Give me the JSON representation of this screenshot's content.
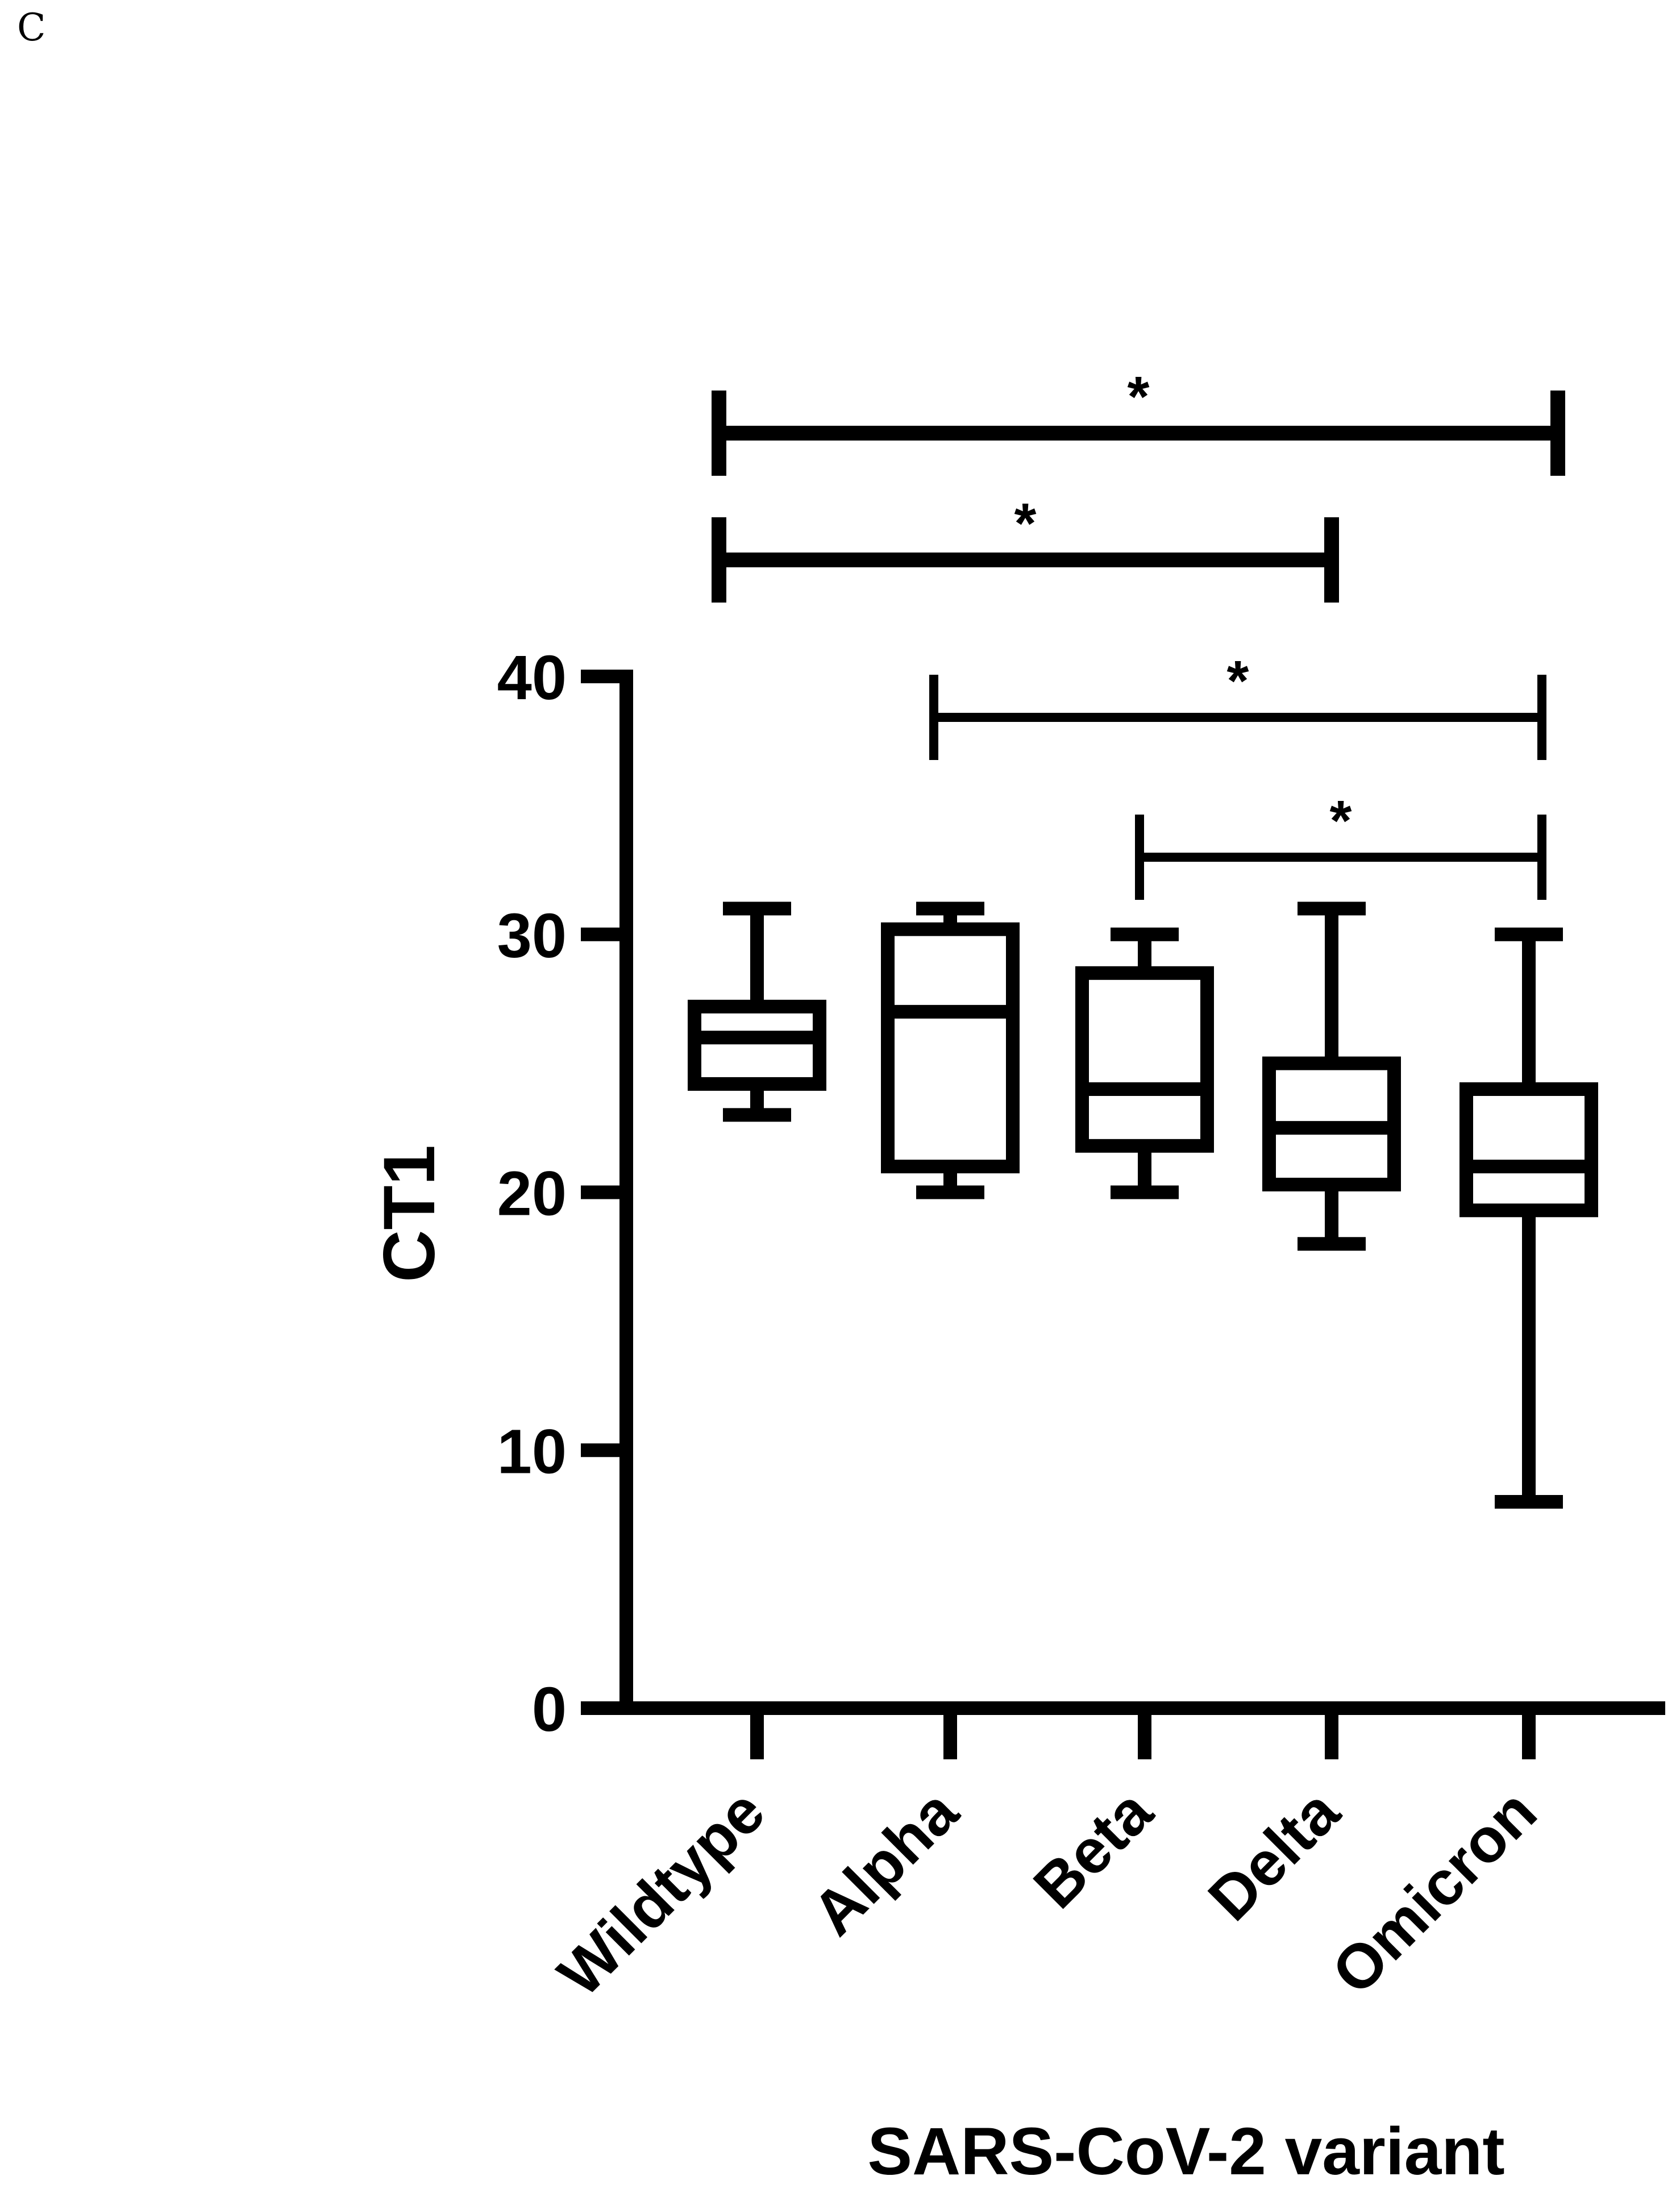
{
  "panel_label": "C",
  "chart_data": {
    "type": "box",
    "title": "",
    "xlabel": "SARS-CoV-2 variant",
    "ylabel": "CT1",
    "ylim": [
      0,
      40
    ],
    "yticks": [
      0,
      10,
      20,
      30,
      40
    ],
    "grid": false,
    "categories": [
      "Wildtype",
      "Alpha",
      "Beta",
      "Delta",
      "Omicron"
    ],
    "boxes": [
      {
        "category": "Wildtype",
        "min": 23,
        "q1": 24.2,
        "median": 26,
        "q3": 27.2,
        "max": 31
      },
      {
        "category": "Alpha",
        "min": 20,
        "q1": 21,
        "median": 27,
        "q3": 30.2,
        "max": 31
      },
      {
        "category": "Beta",
        "min": 20,
        "q1": 21.8,
        "median": 24,
        "q3": 28.5,
        "max": 30
      },
      {
        "category": "Delta",
        "min": 18,
        "q1": 20.3,
        "median": 22.5,
        "q3": 25,
        "max": 31
      },
      {
        "category": "Omicron",
        "min": 8,
        "q1": 19.3,
        "median": 21,
        "q3": 24,
        "max": 30
      }
    ],
    "significance": [
      {
        "from": "Wildtype",
        "to": "Omicron",
        "label": "*"
      },
      {
        "from": "Wildtype",
        "to": "Delta",
        "label": "*"
      },
      {
        "from": "Alpha",
        "to": "Omicron",
        "label": "*"
      },
      {
        "from": "Beta",
        "to": "Omicron",
        "label": "*"
      }
    ]
  }
}
